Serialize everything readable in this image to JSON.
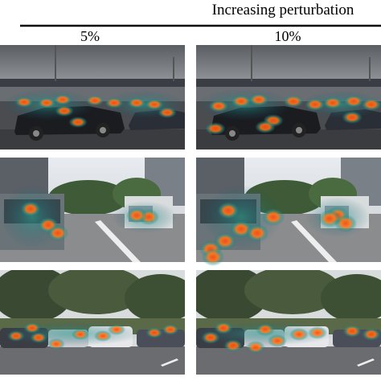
{
  "header": {
    "title": "Increasing perturbation"
  },
  "columns": [
    "5%",
    "10%"
  ]
}
